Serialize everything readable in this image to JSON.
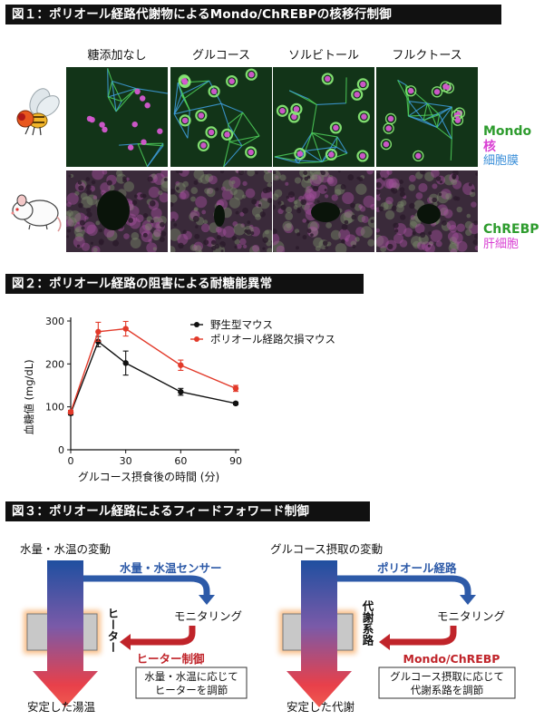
{
  "fig1": {
    "header": "図１：ポリオール経路代謝物によるMondo/ChREBPの核移行制御",
    "columns": [
      "糖添加なし",
      "グルコース",
      "ソルビトール",
      "フルクトース"
    ],
    "legend_fly": [
      "Mondo",
      "核",
      "細胞膜"
    ],
    "legend_mouse": [
      "ChREBP",
      "肝細胞"
    ],
    "colors": {
      "mondo": "#2e9c2e",
      "nucleus": "#d93fd3",
      "membrane": "#3b8fd9",
      "chrebp": "#2e9c2e",
      "hepatocyte": "#d93fd3"
    }
  },
  "fig2": {
    "header": "図２：ポリオール経路の阻害による耐糖能異常",
    "legend": [
      "野生型マウス",
      "ポリオール経路欠損マウス"
    ]
  },
  "chart_data": {
    "type": "line",
    "x": [
      0,
      15,
      30,
      60,
      90
    ],
    "xlabel": "グルコース摂食後の時間 (分)",
    "ylabel": "血糖値 (mg/dL)",
    "xticks": [
      0,
      30,
      60,
      90
    ],
    "yticks": [
      0,
      100,
      200,
      300
    ],
    "xlim": [
      0,
      90
    ],
    "ylim": [
      0,
      300
    ],
    "series": [
      {
        "name": "野生型マウス",
        "color": "#111111",
        "values": [
          85,
          252,
          202,
          135,
          108
        ],
        "errors": [
          4,
          12,
          28,
          8,
          3
        ]
      },
      {
        "name": "ポリオール経路欠損マウス",
        "color": "#e23a2a",
        "values": [
          88,
          275,
          282,
          197,
          143
        ],
        "errors": [
          4,
          22,
          17,
          12,
          7
        ]
      }
    ]
  },
  "fig3": {
    "header": "図３：ポリオール経路によるフィードフォワード制御",
    "left": {
      "top": "水量・水温の変動",
      "sensor": "水量・水温センサー",
      "monitor": "モニタリング",
      "actuator": "ヒーター",
      "control": "ヒーター制御",
      "box": [
        "水量・水温に応じて",
        "ヒーターを調節"
      ],
      "bottom": "安定した湯温"
    },
    "right": {
      "top": "グルコース摂取の変動",
      "sensor": "ポリオール経路",
      "monitor": "モニタリング",
      "actuator": "代謝系路",
      "control": "Mondo/ChREBP",
      "box": [
        "グルコース摂取に応じて",
        "代謝系路を調節"
      ],
      "bottom": "安定した代謝"
    }
  }
}
